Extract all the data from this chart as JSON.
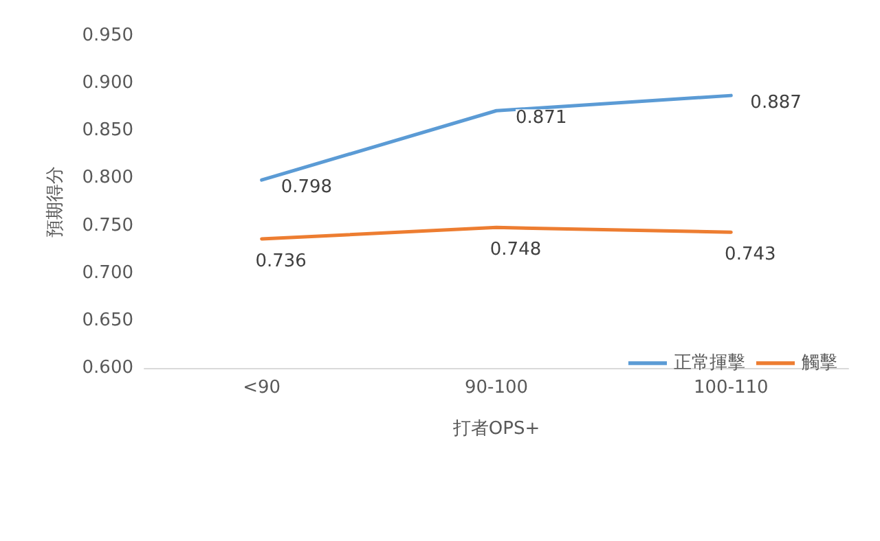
{
  "chart_data": {
    "type": "line",
    "xlabel": "打者OPS+",
    "ylabel": "預期得分",
    "categories": [
      "<90",
      "90-100",
      "100-110"
    ],
    "series": [
      {
        "name": "正常揮擊",
        "color": "#5b9bd5",
        "values": [
          0.798,
          0.871,
          0.887
        ]
      },
      {
        "name": "觸擊",
        "color": "#ed7d31",
        "values": [
          0.736,
          0.748,
          0.743
        ]
      }
    ],
    "ylim": [
      0.6,
      0.95
    ],
    "yticks": [
      {
        "value": 0.6,
        "label": "0.600"
      },
      {
        "value": 0.65,
        "label": "0.650"
      },
      {
        "value": 0.7,
        "label": "0.700"
      },
      {
        "value": 0.75,
        "label": "0.750"
      },
      {
        "value": 0.8,
        "label": "0.800"
      },
      {
        "value": 0.85,
        "label": "0.850"
      },
      {
        "value": 0.9,
        "label": "0.900"
      },
      {
        "value": 0.95,
        "label": "0.950"
      }
    ],
    "data_labels": true,
    "legend": "bottom right",
    "marker": "none",
    "line_style": "solid",
    "grid": false
  }
}
